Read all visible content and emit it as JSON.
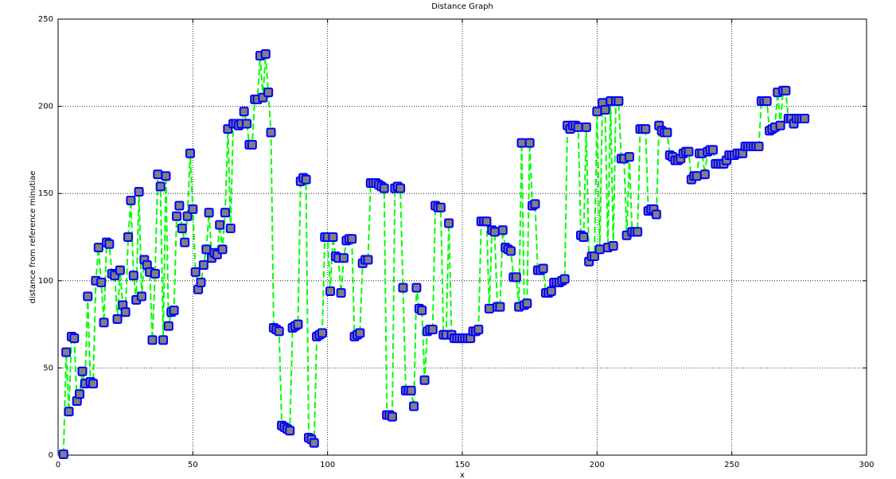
{
  "chart_data": {
    "type": "line",
    "title": "Distance Graph",
    "x_label": "x",
    "y_label": "distance from reference minutiae",
    "x": [
      2,
      3,
      4,
      5,
      6,
      7,
      8,
      9,
      10,
      11,
      12,
      13,
      14,
      15,
      16,
      17,
      18,
      19,
      20,
      21,
      22,
      23,
      24,
      25,
      26,
      27,
      28,
      29,
      30,
      31,
      32,
      33,
      34,
      35,
      36,
      37,
      38,
      39,
      40,
      41,
      42,
      43,
      44,
      45,
      46,
      47,
      48,
      49,
      50,
      51,
      52,
      53,
      54,
      55,
      56,
      57,
      58,
      59,
      60,
      61,
      62,
      63,
      64,
      65,
      66,
      67,
      68,
      69,
      70,
      71,
      72,
      73,
      74,
      75,
      76,
      77,
      78,
      79,
      80,
      81,
      82,
      83,
      84,
      85,
      86,
      87,
      88,
      89,
      90,
      91,
      92,
      93,
      94,
      95,
      96,
      97,
      98,
      99,
      100,
      101,
      102,
      103,
      104,
      105,
      106,
      107,
      108,
      109,
      110,
      111,
      112,
      113,
      114,
      115,
      116,
      117,
      118,
      119,
      120,
      121,
      122,
      123,
      124,
      125,
      126,
      127,
      128,
      129,
      130,
      131,
      132,
      133,
      134,
      135,
      136,
      137,
      138,
      139,
      140,
      141,
      142,
      143,
      144,
      145,
      146,
      147,
      148,
      149,
      150,
      151,
      152,
      153,
      154,
      155,
      156,
      157,
      158,
      159,
      160,
      161,
      162,
      163,
      164,
      165,
      166,
      167,
      168,
      169,
      170,
      171,
      172,
      173,
      174,
      175,
      176,
      177,
      178,
      179,
      180,
      181,
      182,
      183,
      184,
      185,
      186,
      187,
      188,
      189,
      190,
      191,
      192,
      193,
      194,
      195,
      196,
      197,
      198,
      199,
      200,
      201,
      202,
      203,
      204,
      205,
      206,
      207,
      208,
      209,
      210,
      211,
      212,
      213,
      214,
      215,
      216,
      217,
      218,
      219,
      220,
      221,
      222,
      223,
      224,
      225,
      226,
      227,
      228,
      229,
      230,
      231,
      232,
      233,
      234,
      235,
      236,
      237,
      238,
      239,
      240,
      241,
      242,
      243,
      244,
      245,
      246,
      247,
      248,
      249,
      250,
      251,
      252,
      253,
      254,
      255,
      256,
      257,
      258,
      259,
      260,
      261,
      262,
      263,
      264,
      265,
      266,
      267,
      268,
      269,
      270,
      271,
      272,
      273,
      274,
      275,
      276,
      277
    ],
    "values": [
      0.5,
      59,
      25,
      68,
      67,
      31,
      35,
      48,
      41,
      91,
      42,
      41,
      100,
      119,
      99,
      76,
      122,
      121,
      104,
      103,
      78,
      106,
      86,
      82,
      125,
      146,
      103,
      89,
      151,
      91,
      112,
      109,
      105,
      66,
      104,
      161,
      154,
      66,
      160,
      74,
      82,
      83,
      137,
      143,
      130,
      122,
      137,
      173,
      141,
      105,
      95,
      99,
      109,
      118,
      139,
      113,
      116,
      115,
      132,
      118,
      139,
      187,
      130,
      190,
      190,
      189,
      190,
      197,
      190,
      178,
      178,
      204,
      204,
      229,
      205,
      230,
      208,
      185,
      73,
      72,
      71,
      17,
      16,
      15,
      14,
      73,
      74,
      75,
      157,
      159,
      158,
      10,
      9,
      7,
      68,
      69,
      70,
      125,
      125,
      94,
      125,
      114,
      113,
      93,
      113,
      123,
      124,
      124,
      68,
      69,
      70,
      110,
      112,
      112,
      156,
      156,
      156,
      155,
      154,
      153,
      23,
      23,
      22,
      153,
      154,
      153,
      96,
      37,
      37,
      37,
      28,
      96,
      84,
      83,
      43,
      71,
      72,
      72,
      143,
      142,
      142,
      69,
      69,
      133,
      69,
      67,
      67,
      67,
      67,
      67,
      67,
      67,
      71,
      71,
      72,
      134,
      134,
      134,
      84,
      129,
      128,
      85,
      85,
      129,
      119,
      118,
      117,
      102,
      102,
      85,
      179,
      86,
      87,
      179,
      143,
      144,
      106,
      106,
      107,
      93,
      93,
      94,
      99,
      99,
      99,
      100,
      101,
      189,
      187,
      189,
      189,
      188,
      126,
      125,
      188,
      111,
      114,
      114,
      197,
      118,
      202,
      198,
      119,
      203,
      120,
      203,
      203,
      170,
      170,
      126,
      171,
      128,
      128,
      128,
      187,
      187,
      187,
      140,
      141,
      141,
      138,
      189,
      186,
      185,
      185,
      172,
      171,
      169,
      169,
      170,
      173,
      174,
      174,
      158,
      160,
      160,
      173,
      173,
      161,
      174,
      175,
      175,
      167,
      167,
      167,
      167,
      169,
      172,
      172,
      172,
      173,
      173,
      173,
      177,
      177,
      177,
      177,
      177,
      177,
      203,
      203,
      203,
      186,
      187,
      188,
      208,
      189,
      209,
      209,
      193,
      193,
      190,
      193,
      193,
      193,
      193
    ],
    "color": "#00ff00",
    "marker_face": "#808080",
    "marker_edge": "#0000ff",
    "xlim": [
      0,
      300
    ],
    "xticks": [
      0,
      50,
      100,
      150,
      200,
      250,
      300
    ],
    "ylim": [
      0,
      250
    ],
    "yticks": [
      0,
      50,
      100,
      150,
      200,
      250
    ],
    "grid": true
  }
}
